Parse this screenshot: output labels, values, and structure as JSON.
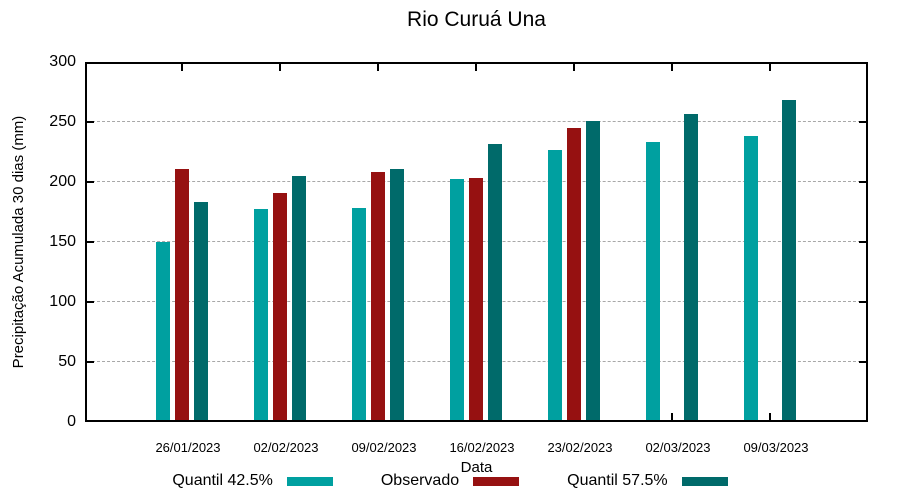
{
  "chart": {
    "title": "Rio Curuá Una",
    "xlabel": "Data",
    "ylabel": "Precipitação Acumulada 30 dias (mm)"
  },
  "chart_data": {
    "type": "bar",
    "title": "Rio Curuá Una",
    "xlabel": "Data",
    "ylabel": "Precipitação Acumulada 30 dias (mm)",
    "categories": [
      "26/01/2023",
      "02/02/2023",
      "09/02/2023",
      "16/02/2023",
      "23/02/2023",
      "02/03/2023",
      "09/03/2023"
    ],
    "series": [
      {
        "name": "Quantil 42.5%",
        "color": "#00A0A0",
        "values": [
          148,
          176,
          177,
          201,
          225,
          232,
          237
        ]
      },
      {
        "name": "Observado",
        "color": "#961111",
        "values": [
          209,
          189,
          207,
          202,
          243,
          null,
          null
        ]
      },
      {
        "name": "Quantil 57.5%",
        "color": "#006A6A",
        "values": [
          182,
          203,
          209,
          230,
          249,
          255,
          267
        ]
      }
    ],
    "ylim": [
      0,
      300
    ],
    "ytick_step": 50,
    "yticks": [
      "0",
      "50",
      "100",
      "150",
      "200",
      "250",
      "300"
    ],
    "grid": true,
    "grid_style": "dashed",
    "legend_position": "bottom",
    "axis_color": "#000000",
    "grid_color": "#a8a8a8"
  }
}
